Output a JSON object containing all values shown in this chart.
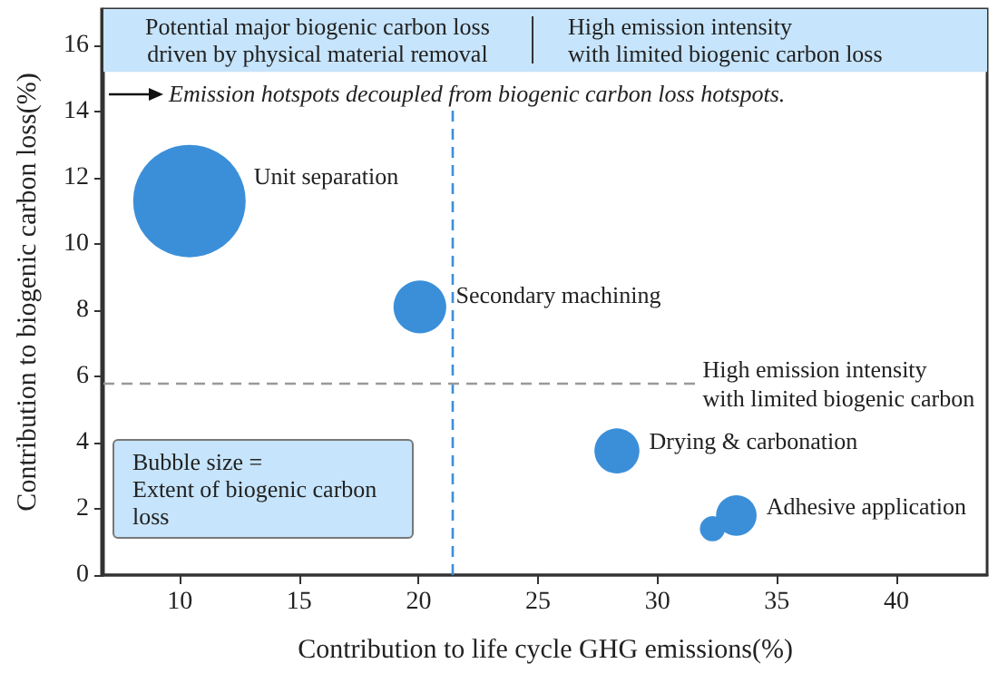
{
  "chart_data": {
    "type": "bubble",
    "xlabel": "Contribution to life cycle GHG emissions(%)",
    "ylabel": "Contribution to biogenic carbon loss(%)",
    "x": [
      10.4,
      20.05,
      28.3,
      33.3,
      32.3
    ],
    "values": [
      11.3,
      8.1,
      3.75,
      1.8,
      1.4
    ],
    "sizes": [
      1,
      0.22,
      0.16,
      0.13,
      0.05
    ],
    "color": "#3b8fd9",
    "xlim": [
      6.8,
      43.8
    ],
    "xticks": [
      10,
      15,
      20,
      25,
      30,
      35,
      40
    ],
    "ylim": [
      0,
      17.1
    ],
    "yticks": [
      0,
      2,
      4,
      6,
      8,
      10,
      12,
      14,
      16
    ],
    "grid": false,
    "ref_lines": [
      {
        "axis": "x",
        "value": 21.4,
        "color": "#3b8fd9",
        "line_style": "dashed",
        "label": null
      },
      {
        "axis": "y",
        "value": 5.77,
        "color": "#999999",
        "line_style": "dashed",
        "label": "High emission intensity\nwith limited biogenic carbon"
      }
    ],
    "bands": [
      {
        "axis": "y",
        "from": 15.2,
        "to": 17.1,
        "color": "#c6e4fb",
        "label": null
      }
    ],
    "annotations": [
      "Potential major biogenic carbon loss\ndriven by physical material removal",
      "High emission intensity\nwith limited biogenic carbon loss",
      "Emission hotspots decoupled from biogenic carbon loss hotspots.",
      "Bubble size =\nExtent of biogenic carbon\nloss",
      {
        "text": "Unit separation",
        "x": 10.4,
        "y": 11.3
      },
      {
        "text": "Secondary machining",
        "x": 20.05,
        "y": 8.1
      },
      {
        "text": "Drying & carbonation",
        "x": 28.3,
        "y": 3.75
      },
      {
        "text": "Adhesive application",
        "x": 33.3,
        "y": 1.8
      }
    ]
  }
}
